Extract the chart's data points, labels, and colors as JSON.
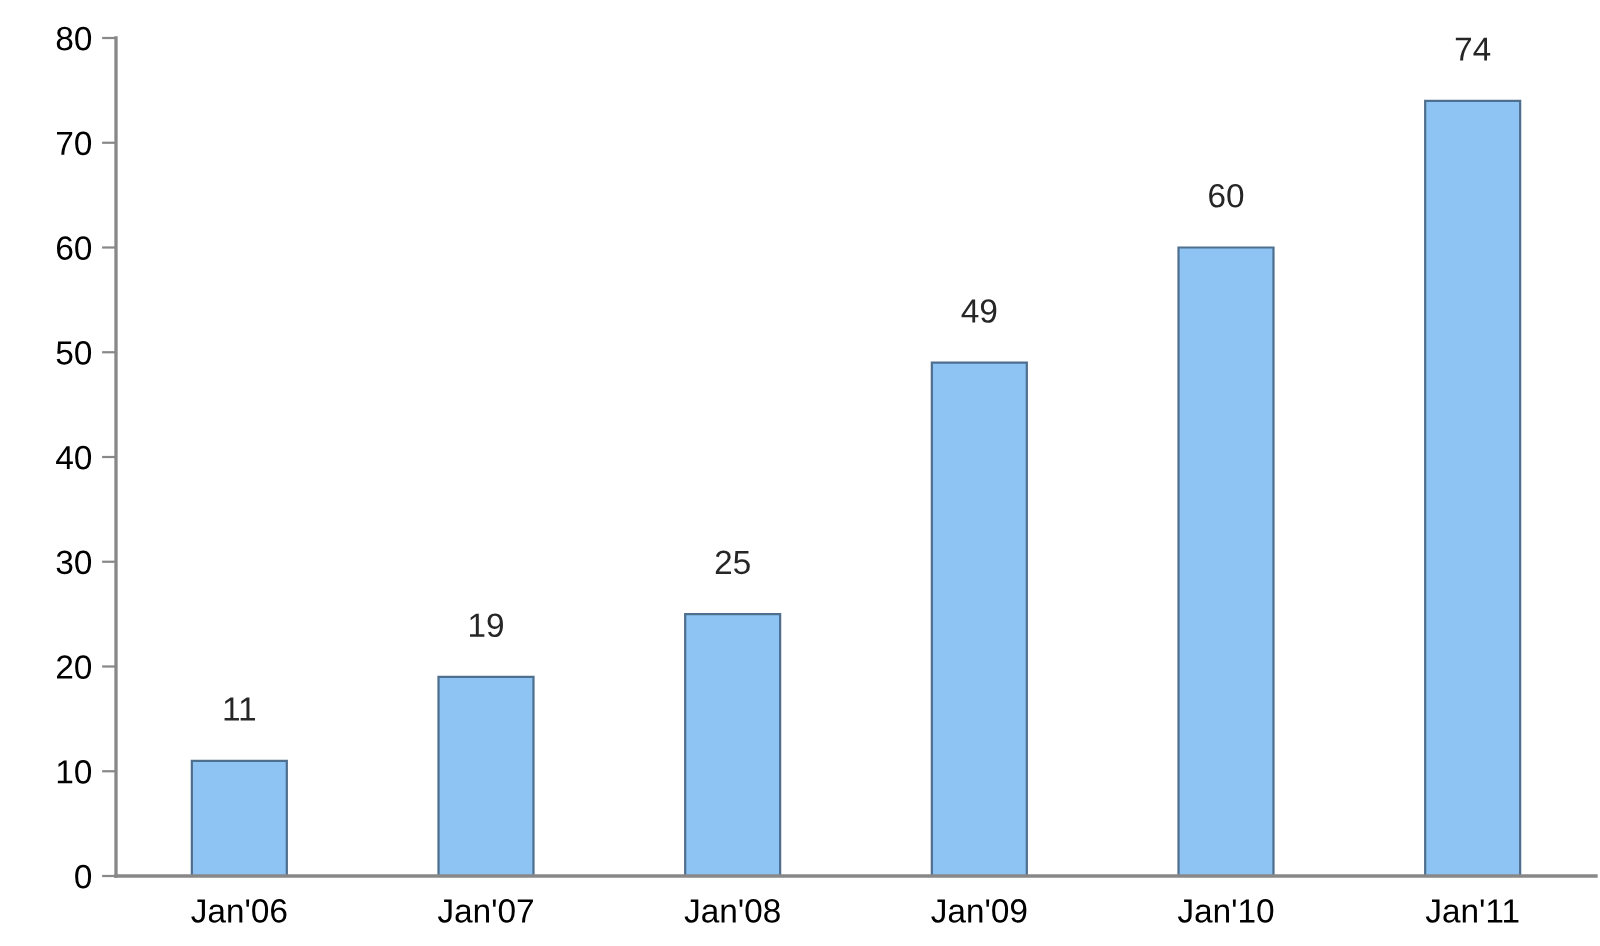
{
  "chart_data": {
    "type": "bar",
    "categories": [
      "Jan'06",
      "Jan'07",
      "Jan'08",
      "Jan'09",
      "Jan'10",
      "Jan'11"
    ],
    "values": [
      11,
      19,
      25,
      49,
      60,
      74
    ],
    "color": "#8ec4f3",
    "ylim": [
      0,
      80
    ],
    "yticks": [
      0,
      10,
      20,
      30,
      40,
      50,
      60,
      70,
      80
    ],
    "data_labels": true,
    "grid": false
  }
}
